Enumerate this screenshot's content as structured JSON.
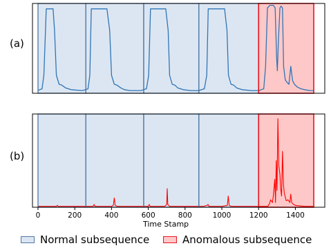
{
  "figure": {
    "panel_labels": [
      "(a)",
      "(b)"
    ],
    "xlabel": "Time Stamp",
    "legend": {
      "normal_label": "Normal subsequence",
      "anomalous_label": "Anomalous subsequence"
    },
    "colors": {
      "signal_line": "#2e75b6",
      "score_line": "#ff0000",
      "normal_fill": "#dce6f2",
      "normal_border": "#4e79a7",
      "anomaly_fill": "#ffc8c8",
      "anomaly_border": "#e8141e"
    }
  },
  "chart_data": [
    {
      "type": "line",
      "panel": "(a)",
      "title": "",
      "xlabel": "",
      "ylabel": "",
      "xlim": [
        -30,
        1560
      ],
      "ylim": [
        0,
        1
      ],
      "grid": false,
      "segments": [
        {
          "type": "normal",
          "x_start": 0,
          "x_end": 260
        },
        {
          "type": "normal",
          "x_start": 260,
          "x_end": 575
        },
        {
          "type": "normal",
          "x_start": 575,
          "x_end": 875
        },
        {
          "type": "normal",
          "x_start": 875,
          "x_end": 1200
        },
        {
          "type": "anomalous",
          "x_start": 1200,
          "x_end": 1500
        }
      ],
      "series": [
        {
          "x": [
            0,
            10,
            22,
            32,
            45,
            60,
            75,
            82,
            90,
            100,
            115,
            130,
            150,
            180,
            240,
            260,
            272,
            282,
            290,
            305,
            360,
            375,
            390,
            400,
            415,
            430,
            450,
            470,
            500,
            560,
            575,
            590,
            602,
            612,
            625,
            680,
            695,
            708,
            716,
            730,
            745,
            760,
            790,
            830,
            875,
            890,
            905,
            918,
            926,
            940,
            1000,
            1015,
            1028,
            1036,
            1050,
            1065,
            1080,
            1110,
            1160,
            1200,
            1215,
            1228,
            1238,
            1248,
            1262,
            1280,
            1290,
            1298,
            1302,
            1308,
            1316,
            1322,
            1330,
            1336,
            1345,
            1355,
            1365,
            1375,
            1385,
            1395,
            1410,
            1430,
            1450,
            1480,
            1500
          ],
          "y": [
            0.03,
            0.04,
            0.05,
            0.2,
            0.94,
            0.94,
            0.94,
            0.94,
            0.7,
            0.2,
            0.1,
            0.09,
            0.06,
            0.04,
            0.03,
            0.04,
            0.05,
            0.2,
            0.94,
            0.94,
            0.94,
            0.94,
            0.7,
            0.2,
            0.1,
            0.09,
            0.06,
            0.04,
            0.03,
            0.03,
            0.04,
            0.05,
            0.2,
            0.94,
            0.94,
            0.94,
            0.94,
            0.7,
            0.2,
            0.1,
            0.09,
            0.06,
            0.04,
            0.03,
            0.03,
            0.04,
            0.05,
            0.2,
            0.94,
            0.94,
            0.94,
            0.94,
            0.7,
            0.2,
            0.1,
            0.09,
            0.06,
            0.04,
            0.03,
            0.03,
            0.04,
            0.05,
            0.3,
            0.95,
            0.98,
            0.98,
            0.95,
            0.4,
            0.25,
            0.6,
            0.95,
            0.97,
            0.95,
            0.3,
            0.15,
            0.12,
            0.1,
            0.3,
            0.14,
            0.1,
            0.07,
            0.05,
            0.04,
            0.03,
            0.03
          ]
        }
      ]
    },
    {
      "type": "line",
      "panel": "(b)",
      "title": "",
      "xlabel": "Time Stamp",
      "ylabel": "",
      "xlim": [
        -30,
        1560
      ],
      "ylim": [
        0,
        1
      ],
      "grid": false,
      "x_ticks": [
        0,
        200,
        400,
        600,
        800,
        1000,
        1200,
        1400
      ],
      "segments": [
        {
          "type": "normal",
          "x_start": 0,
          "x_end": 260
        },
        {
          "type": "normal",
          "x_start": 260,
          "x_end": 575
        },
        {
          "type": "normal",
          "x_start": 575,
          "x_end": 875
        },
        {
          "type": "normal",
          "x_start": 875,
          "x_end": 1200
        },
        {
          "type": "anomalous",
          "x_start": 1200,
          "x_end": 1500
        }
      ],
      "series": [
        {
          "x": [
            0,
            100,
            105,
            110,
            200,
            300,
            305,
            310,
            400,
            410,
            415,
            420,
            430,
            600,
            605,
            610,
            690,
            700,
            703,
            706,
            716,
            900,
            920,
            925,
            930,
            1000,
            1030,
            1035,
            1040,
            1050,
            1200,
            1250,
            1260,
            1265,
            1275,
            1280,
            1288,
            1292,
            1296,
            1300,
            1305,
            1310,
            1316,
            1320,
            1325,
            1330,
            1335,
            1340,
            1350,
            1360,
            1370,
            1375,
            1380,
            1390,
            1400,
            1450,
            1500
          ],
          "y": [
            0.01,
            0.01,
            0.02,
            0.01,
            0.01,
            0.01,
            0.03,
            0.01,
            0.01,
            0.02,
            0.1,
            0.02,
            0.01,
            0.01,
            0.03,
            0.01,
            0.01,
            0.03,
            0.2,
            0.03,
            0.01,
            0.01,
            0.02,
            0.03,
            0.01,
            0.01,
            0.02,
            0.12,
            0.02,
            0.01,
            0.01,
            0.01,
            0.04,
            0.08,
            0.05,
            0.12,
            0.3,
            0.05,
            0.5,
            0.18,
            0.95,
            0.45,
            0.35,
            0.2,
            0.12,
            0.6,
            0.25,
            0.15,
            0.07,
            0.08,
            0.05,
            0.14,
            0.05,
            0.03,
            0.02,
            0.01,
            0.01
          ]
        }
      ]
    }
  ]
}
